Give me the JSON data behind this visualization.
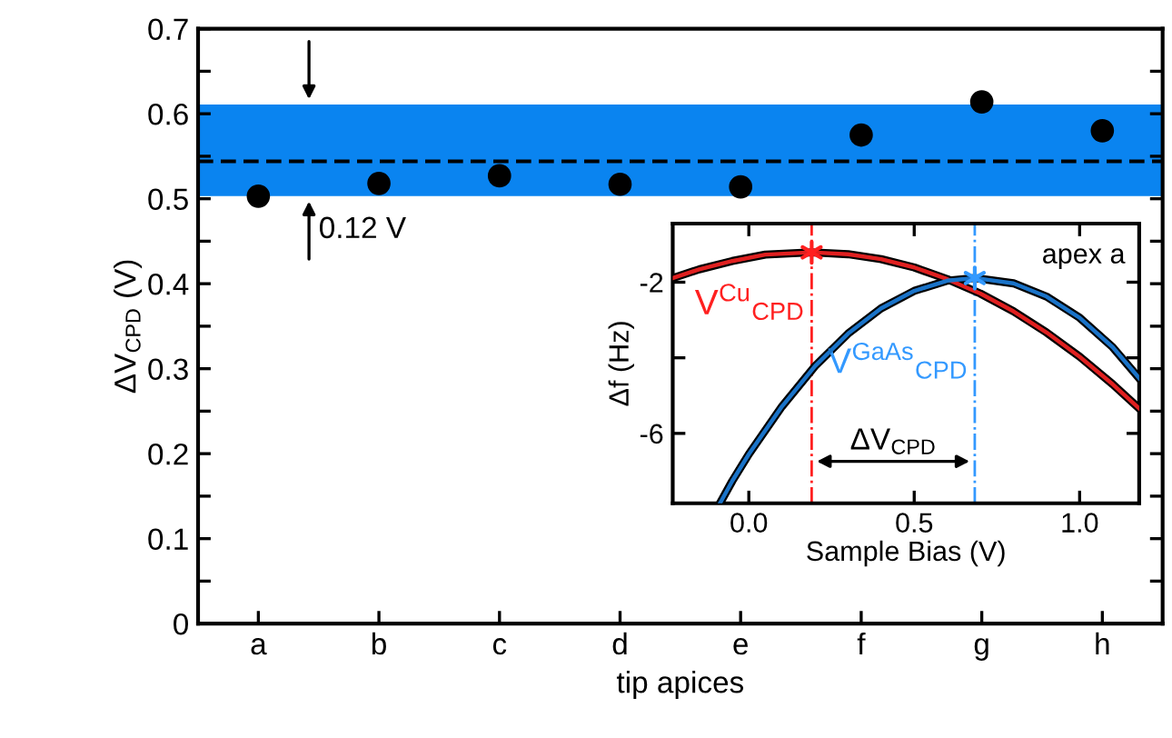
{
  "chart_data": [
    {
      "type": "scatter",
      "ylabel": "ΔV$_{CPD}$ (V)",
      "xlabel": "tip apices",
      "categories": [
        "a",
        "b",
        "c",
        "d",
        "e",
        "f",
        "g",
        "h"
      ],
      "series": [
        {
          "color": "#000000",
          "values": [
            0.503,
            0.518,
            0.527,
            0.517,
            0.514,
            0.575,
            0.614,
            0.58
          ]
        }
      ],
      "marker": "circle",
      "ylim": [
        0,
        0.7
      ],
      "yticks": [
        0,
        {
          "value": 0.05,
          "label": null
        },
        0.1,
        {
          "value": 0.15,
          "label": null
        },
        0.2,
        {
          "value": 0.25,
          "label": null
        },
        0.3,
        {
          "value": 0.35,
          "label": null
        },
        0.4,
        {
          "value": 0.45,
          "label": null
        },
        0.5,
        {
          "value": 0.55,
          "label": null
        },
        0.6,
        {
          "value": 0.65,
          "label": null
        },
        0.7
      ],
      "bands": [
        {
          "axis": "y",
          "from": 0.503,
          "to": 0.611,
          "label": "0.12 V",
          "color": "#0a84f0"
        }
      ],
      "ref_lines": [
        {
          "axis": "y",
          "value": 0.544,
          "color": "#000000",
          "line_style": "dashed"
        }
      ]
    },
    {
      "type": "line",
      "xlabel": "Sample Bias (V)",
      "ylabel": "Δf (Hz)",
      "series": [
        {
          "color": "#e02020",
          "x": [
            -0.23,
            -0.15,
            -0.05,
            0.05,
            0.19,
            0.3,
            0.4,
            0.5,
            0.6,
            0.7,
            0.8,
            0.9,
            1.0,
            1.1,
            1.18
          ],
          "values": [
            -1.89,
            -1.66,
            -1.44,
            -1.27,
            -1.21,
            -1.26,
            -1.39,
            -1.61,
            -1.92,
            -2.3,
            -2.77,
            -3.33,
            -3.97,
            -4.7,
            -5.34
          ]
        },
        {
          "color": "#1a73c8",
          "x": [
            -0.086,
            -0.05,
            0,
            0.1,
            0.2,
            0.3,
            0.4,
            0.5,
            0.6,
            0.683,
            0.8,
            0.9,
            1.0,
            1.1,
            1.18
          ],
          "values": [
            -7.83,
            -7.26,
            -6.55,
            -5.29,
            -4.22,
            -3.36,
            -2.69,
            -2.23,
            -1.96,
            -1.89,
            -2.03,
            -2.38,
            -2.94,
            -3.72,
            -4.54
          ]
        },
        {
          "type": "scatter",
          "marker": "cross",
          "color": "#ff2020",
          "x": [
            0.19
          ],
          "values": [
            -1.21
          ]
        },
        {
          "type": "scatter",
          "marker": "cross",
          "color": "#3399ff",
          "x": [
            0.683
          ],
          "values": [
            -1.89
          ]
        }
      ],
      "xlim": [
        -0.23,
        1.18
      ],
      "xticks": [
        {
          "value": 0,
          "label": "0.0"
        },
        0.5,
        {
          "value": 1,
          "label": "1.0"
        }
      ],
      "ylim": [
        -7.85,
        -0.45
      ],
      "yticks": [
        -2,
        {
          "value": -4,
          "label": null
        },
        -6
      ],
      "ref_lines": [
        {
          "axis": "x",
          "value": 0.19,
          "label": "V$^{Cu}$$_{CPD}$",
          "color": "#ff2020",
          "line_style": "dashdot"
        },
        {
          "axis": "x",
          "value": 0.683,
          "label": "V$^{GaAs}$$_{CPD}$",
          "color": "#3399ff",
          "line_style": "dashdot"
        }
      ],
      "annotations": [
        "apex a",
        {
          "text": "ΔV$_{CPD}$",
          "x": 0.19,
          "y": -6.74
        }
      ]
    }
  ]
}
